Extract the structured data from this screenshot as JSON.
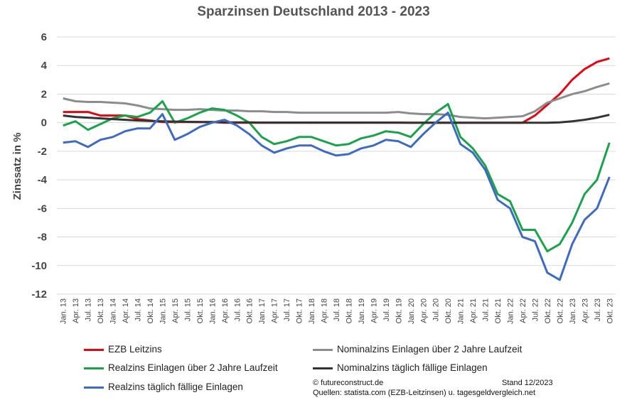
{
  "chart_data": {
    "type": "line",
    "title": "Sparzinsen Deutschland 2013 - 2023",
    "ylabel": "Zinssatz in %",
    "ylim": [
      -12,
      6
    ],
    "yticks": [
      "6",
      "4",
      "2",
      "0",
      "-2",
      "-4",
      "-6",
      "-8",
      "-10",
      "-12"
    ],
    "grid": "horizontal",
    "legend_position": "bottom",
    "x_tick_labels": [
      "Jan. 13",
      "Apr. 13",
      "Jul. 13",
      "Okt. 13",
      "Jan. 14",
      "Apr. 14",
      "Jul. 14",
      "Okt. 14",
      "Jan. 15",
      "Apr. 15",
      "Jul. 15",
      "Okt. 15",
      "Jan. 16",
      "Apr. 16",
      "Jul. 16",
      "Okt. 16",
      "Jan. 17",
      "Apr. 17",
      "Jul. 17",
      "Okt. 17",
      "Jan. 18",
      "Apr. 18",
      "Jul. 18",
      "Okt. 18",
      "Jan. 19",
      "Apr. 19",
      "Jul. 19",
      "Okt. 19",
      "Jan. 20",
      "Apr. 20",
      "Jul. 20",
      "Okt. 20",
      "Jan. 21",
      "Apr. 21",
      "Jul. 21",
      "Okt. 21",
      "Jan. 22",
      "Apr. 22",
      "Jul. 22",
      "Okt. 22",
      "Okt. 22",
      "Jan. 23",
      "Apr. 23",
      "Jul. 23",
      "Okt. 23"
    ],
    "series": [
      {
        "name": "EZB Leitzins",
        "color": "#e30613",
        "points": [
          [
            0,
            0.75
          ],
          [
            1,
            0.75
          ],
          [
            2,
            0.75
          ],
          [
            3,
            0.5
          ],
          [
            4,
            0.5
          ],
          [
            5,
            0.5
          ],
          [
            6,
            0.25
          ],
          [
            7,
            0.15
          ],
          [
            8,
            0.05
          ],
          [
            9,
            0.05
          ],
          [
            10,
            0.05
          ],
          [
            11,
            0.05
          ],
          [
            12,
            0.05
          ],
          [
            13,
            0
          ],
          [
            14,
            0
          ],
          [
            15,
            0
          ],
          [
            16,
            0
          ],
          [
            17,
            0
          ],
          [
            18,
            0
          ],
          [
            19,
            0
          ],
          [
            20,
            0
          ],
          [
            21,
            0
          ],
          [
            22,
            0
          ],
          [
            23,
            0
          ],
          [
            24,
            0
          ],
          [
            25,
            0
          ],
          [
            26,
            0
          ],
          [
            27,
            0
          ],
          [
            28,
            0
          ],
          [
            29,
            0
          ],
          [
            30,
            0
          ],
          [
            31,
            0
          ],
          [
            32,
            0
          ],
          [
            33,
            0
          ],
          [
            34,
            0
          ],
          [
            35,
            0
          ],
          [
            36,
            0
          ],
          [
            37,
            0
          ],
          [
            38,
            0.5
          ],
          [
            39,
            1.25
          ],
          [
            40,
            2.0
          ],
          [
            41,
            3.0
          ],
          [
            42,
            3.75
          ],
          [
            43,
            4.25
          ],
          [
            44,
            4.5
          ]
        ]
      },
      {
        "name": "Nominalzins Einlagen über 2 Jahre Laufzeit",
        "color": "#8c8c8c",
        "points": [
          [
            0,
            1.7
          ],
          [
            1,
            1.5
          ],
          [
            2,
            1.45
          ],
          [
            3,
            1.45
          ],
          [
            4,
            1.4
          ],
          [
            5,
            1.35
          ],
          [
            6,
            1.2
          ],
          [
            7,
            1.0
          ],
          [
            8,
            0.95
          ],
          [
            9,
            0.9
          ],
          [
            10,
            0.9
          ],
          [
            11,
            0.95
          ],
          [
            12,
            0.9
          ],
          [
            13,
            0.85
          ],
          [
            14,
            0.85
          ],
          [
            15,
            0.8
          ],
          [
            16,
            0.8
          ],
          [
            17,
            0.75
          ],
          [
            18,
            0.75
          ],
          [
            19,
            0.7
          ],
          [
            20,
            0.7
          ],
          [
            21,
            0.7
          ],
          [
            22,
            0.7
          ],
          [
            23,
            0.7
          ],
          [
            24,
            0.7
          ],
          [
            25,
            0.7
          ],
          [
            26,
            0.7
          ],
          [
            27,
            0.75
          ],
          [
            28,
            0.65
          ],
          [
            29,
            0.6
          ],
          [
            30,
            0.6
          ],
          [
            31,
            0.55
          ],
          [
            32,
            0.4
          ],
          [
            33,
            0.35
          ],
          [
            34,
            0.3
          ],
          [
            35,
            0.35
          ],
          [
            36,
            0.4
          ],
          [
            37,
            0.45
          ],
          [
            38,
            0.8
          ],
          [
            39,
            1.4
          ],
          [
            40,
            1.7
          ],
          [
            41,
            2.0
          ],
          [
            42,
            2.2
          ],
          [
            43,
            2.5
          ],
          [
            44,
            2.75
          ]
        ]
      },
      {
        "name": "Realzins Einlagen über 2 Jahre Laufzeit",
        "color": "#1aa34a",
        "points": [
          [
            0,
            -0.2
          ],
          [
            1,
            0.1
          ],
          [
            2,
            -0.5
          ],
          [
            3,
            -0.1
          ],
          [
            4,
            0.3
          ],
          [
            5,
            0.5
          ],
          [
            6,
            0.4
          ],
          [
            7,
            0.7
          ],
          [
            8,
            1.5
          ],
          [
            9,
            0.0
          ],
          [
            10,
            0.3
          ],
          [
            11,
            0.7
          ],
          [
            12,
            1.0
          ],
          [
            13,
            0.9
          ],
          [
            14,
            0.5
          ],
          [
            15,
            0.0
          ],
          [
            16,
            -1.0
          ],
          [
            17,
            -1.5
          ],
          [
            18,
            -1.3
          ],
          [
            19,
            -1.0
          ],
          [
            20,
            -1.0
          ],
          [
            21,
            -1.3
          ],
          [
            22,
            -1.6
          ],
          [
            23,
            -1.5
          ],
          [
            24,
            -1.1
          ],
          [
            25,
            -0.9
          ],
          [
            26,
            -0.6
          ],
          [
            27,
            -0.7
          ],
          [
            28,
            -1.0
          ],
          [
            29,
            -0.1
          ],
          [
            30,
            0.7
          ],
          [
            31,
            1.3
          ],
          [
            32,
            -1.0
          ],
          [
            33,
            -1.8
          ],
          [
            34,
            -3.0
          ],
          [
            35,
            -5.0
          ],
          [
            36,
            -5.5
          ],
          [
            37,
            -7.5
          ],
          [
            38,
            -7.5
          ],
          [
            39,
            -9.0
          ],
          [
            40,
            -8.5
          ],
          [
            41,
            -7.0
          ],
          [
            42,
            -5.0
          ],
          [
            43,
            -4.0
          ],
          [
            44,
            -1.4
          ]
        ]
      },
      {
        "name": "Nominalzins täglich fällige Einlagen",
        "color": "#333333",
        "points": [
          [
            0,
            0.5
          ],
          [
            1,
            0.4
          ],
          [
            2,
            0.35
          ],
          [
            3,
            0.3
          ],
          [
            4,
            0.25
          ],
          [
            5,
            0.2
          ],
          [
            6,
            0.15
          ],
          [
            7,
            0.12
          ],
          [
            8,
            0.1
          ],
          [
            9,
            0.08
          ],
          [
            10,
            0.06
          ],
          [
            11,
            0.05
          ],
          [
            12,
            0.04
          ],
          [
            13,
            0.03
          ],
          [
            14,
            0.02
          ],
          [
            15,
            0.02
          ],
          [
            16,
            0.01
          ],
          [
            17,
            0.01
          ],
          [
            18,
            0.01
          ],
          [
            19,
            0.01
          ],
          [
            20,
            0.01
          ],
          [
            21,
            0.01
          ],
          [
            22,
            0.01
          ],
          [
            23,
            0.01
          ],
          [
            24,
            0.01
          ],
          [
            25,
            0.01
          ],
          [
            26,
            0.01
          ],
          [
            27,
            0.01
          ],
          [
            28,
            0.0
          ],
          [
            29,
            0.0
          ],
          [
            30,
            0.0
          ],
          [
            31,
            0.0
          ],
          [
            32,
            0.0
          ],
          [
            33,
            0.0
          ],
          [
            34,
            0.0
          ],
          [
            35,
            0.0
          ],
          [
            36,
            0.0
          ],
          [
            37,
            0.0
          ],
          [
            38,
            0.0
          ],
          [
            39,
            0.0
          ],
          [
            40,
            0.02
          ],
          [
            41,
            0.1
          ],
          [
            42,
            0.2
          ],
          [
            43,
            0.35
          ],
          [
            44,
            0.55
          ]
        ]
      },
      {
        "name": "Realzins täglich fällige Einlagen",
        "color": "#3d6bc4",
        "points": [
          [
            0,
            -1.4
          ],
          [
            1,
            -1.3
          ],
          [
            2,
            -1.7
          ],
          [
            3,
            -1.2
          ],
          [
            4,
            -1.0
          ],
          [
            5,
            -0.6
          ],
          [
            6,
            -0.4
          ],
          [
            7,
            -0.4
          ],
          [
            8,
            0.6
          ],
          [
            9,
            -1.2
          ],
          [
            10,
            -0.8
          ],
          [
            11,
            -0.3
          ],
          [
            12,
            0.0
          ],
          [
            13,
            0.2
          ],
          [
            14,
            -0.2
          ],
          [
            15,
            -0.8
          ],
          [
            16,
            -1.6
          ],
          [
            17,
            -2.1
          ],
          [
            18,
            -1.8
          ],
          [
            19,
            -1.6
          ],
          [
            20,
            -1.6
          ],
          [
            21,
            -2.0
          ],
          [
            22,
            -2.3
          ],
          [
            23,
            -2.2
          ],
          [
            24,
            -1.8
          ],
          [
            25,
            -1.6
          ],
          [
            26,
            -1.2
          ],
          [
            27,
            -1.3
          ],
          [
            28,
            -1.7
          ],
          [
            29,
            -0.8
          ],
          [
            30,
            0.0
          ],
          [
            31,
            0.7
          ],
          [
            32,
            -1.5
          ],
          [
            33,
            -2.1
          ],
          [
            34,
            -3.3
          ],
          [
            35,
            -5.4
          ],
          [
            36,
            -6.0
          ],
          [
            37,
            -8.0
          ],
          [
            38,
            -8.3
          ],
          [
            39,
            -10.5
          ],
          [
            40,
            -11.0
          ],
          [
            41,
            -8.5
          ],
          [
            42,
            -6.8
          ],
          [
            43,
            -6.0
          ],
          [
            44,
            -3.8
          ]
        ]
      }
    ]
  },
  "footer": {
    "copyright": "© futureconstruct.de",
    "stand": "Stand 12/2023",
    "sources": "Quellen: statista.com (EZB-Leitzinsen) u. tagesgeldvergleich.net"
  }
}
